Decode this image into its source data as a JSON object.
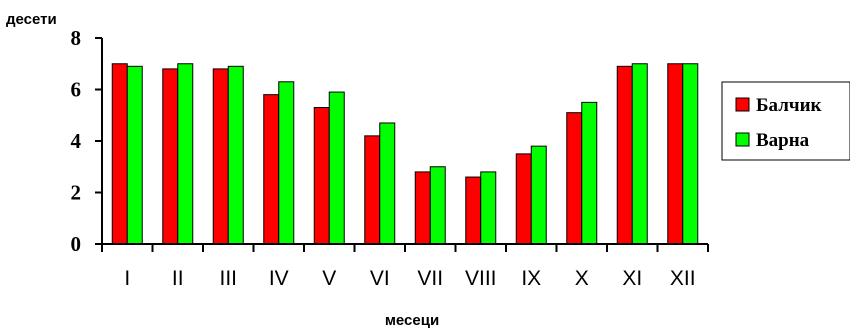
{
  "chart_data": {
    "type": "bar",
    "title": "",
    "ylabel": "десети",
    "xlabel": "месеци",
    "ylim": [
      0,
      8
    ],
    "yticks": [
      "0",
      "2",
      "4",
      "6",
      "8"
    ],
    "grid": false,
    "legend_position": "right",
    "categories": [
      "I",
      "II",
      "III",
      "IV",
      "V",
      "VI",
      "VII",
      "VIII",
      "IX",
      "X",
      "XI",
      "XII"
    ],
    "series": [
      {
        "name": "Балчик",
        "color": "#FF0000",
        "values": [
          7.0,
          6.8,
          6.8,
          5.8,
          5.3,
          4.2,
          2.8,
          2.6,
          3.5,
          5.1,
          6.9,
          7.0
        ]
      },
      {
        "name": "Варна",
        "color": "#00FF00",
        "values": [
          6.9,
          7.0,
          6.9,
          6.3,
          5.9,
          4.7,
          3.0,
          2.8,
          3.8,
          5.5,
          7.0,
          7.0
        ]
      }
    ]
  }
}
